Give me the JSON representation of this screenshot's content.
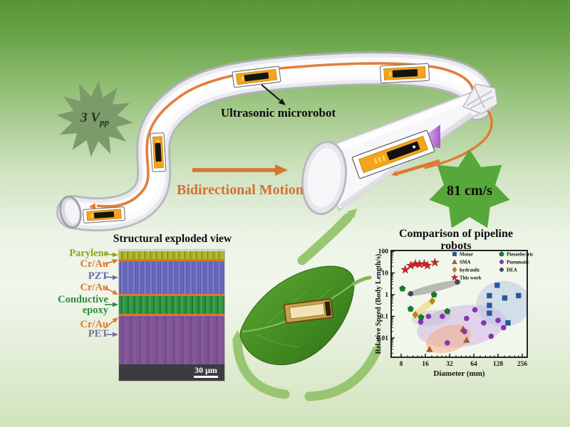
{
  "scene": {
    "vpp_prefix": "3 V",
    "vpp_sub": "pp",
    "microrobot_label": "Ultrasonic microrobot",
    "motion_label": "Bidirectional Motion",
    "speed_badge": "81 cm/s",
    "accent_orange": "#d2722e",
    "badge_green": "#57a83b",
    "vpp_star_green": "#7c9b6a",
    "tube_track_orange": "#e0772e"
  },
  "sem": {
    "title": "Structural exploded view",
    "scale_label": "30 μm",
    "labels": {
      "parylene": "Parylene",
      "crau1": "Cr/Au",
      "pzt": "PZT",
      "crau2": "Cr/Au",
      "epoxy_line1": "Conductive",
      "epoxy_line2": "epoxy",
      "crau3": "Cr/Au",
      "pet": "PET"
    },
    "colors": {
      "parylene": "#96a414",
      "crau": "#e0762f",
      "pzt": "#686ab0",
      "epoxy": "#2d8b3d",
      "pet": "#73739b"
    }
  },
  "chart_data": {
    "type": "scatter",
    "title": "Comparison of pipeline robots",
    "xlabel": "Diameter (mm)",
    "ylabel": "Relative Speed (Body Length/s)",
    "x_scale": "log2",
    "y_scale": "log10",
    "x_ticks": [
      8,
      16,
      32,
      64,
      128,
      256
    ],
    "y_ticks": [
      100,
      10,
      1,
      0.1,
      0.01
    ],
    "xlim": [
      6,
      300
    ],
    "ylim": [
      0.0013,
      100
    ],
    "grid": false,
    "legend_position": "top-right-inside",
    "series": [
      {
        "name": "Motor",
        "marker": "square",
        "color": "#2457a8",
        "points": [
          [
            125,
            2.7
          ],
          [
            100,
            0.9
          ],
          [
            155,
            0.7
          ],
          [
            230,
            0.9
          ],
          [
            100,
            0.32
          ],
          [
            100,
            0.14
          ],
          [
            170,
            0.05
          ]
        ]
      },
      {
        "name": "SMA",
        "marker": "triangle",
        "color": "#b05a2a",
        "points": [
          [
            18,
            0.003
          ],
          [
            47,
            0.026
          ],
          [
            52,
            0.008
          ]
        ]
      },
      {
        "name": "hydraulic",
        "marker": "diamond",
        "color": "#b8860b",
        "points": [
          [
            12,
            0.12
          ],
          [
            19.5,
            0.5
          ]
        ]
      },
      {
        "name": "This work",
        "marker": "star",
        "color": "#d42027",
        "points": [
          [
            9,
            14
          ],
          [
            10.5,
            22
          ],
          [
            12,
            26
          ],
          [
            13.5,
            25
          ],
          [
            15.5,
            26
          ],
          [
            17,
            22
          ],
          [
            21,
            30
          ]
        ]
      },
      {
        "name": "Piezoelectric",
        "marker": "pentagon",
        "color": "#1b7a2a",
        "points": [
          [
            8.3,
            1.9
          ],
          [
            10.5,
            0.22
          ],
          [
            14.2,
            0.09
          ],
          [
            20.5,
            1.0
          ],
          [
            30,
            0.17
          ]
        ]
      },
      {
        "name": "Pneumatic",
        "marker": "circle",
        "color": "#8b2fc0",
        "points": [
          [
            14,
            0.055
          ],
          [
            17.5,
            0.1
          ],
          [
            26,
            0.1
          ],
          [
            52,
            0.08
          ],
          [
            66,
            0.2
          ],
          [
            85,
            0.05
          ],
          [
            128,
            0.065
          ],
          [
            150,
            0.03
          ],
          [
            105,
            0.012
          ],
          [
            30,
            0.006
          ],
          [
            49,
            0.02
          ]
        ]
      },
      {
        "name": "DEA",
        "marker": "circle",
        "color": "#4a4a4a",
        "points": [
          [
            10.5,
            1.1
          ],
          [
            40,
            3.8
          ]
        ]
      }
    ],
    "legend_columns": [
      [
        "Motor",
        "SMA",
        "hydraulic",
        "This work"
      ],
      [
        "Piezoelectric",
        "Pneumatic",
        "DEA"
      ]
    ],
    "regions": [
      {
        "label": "DEA",
        "cx": 20.5,
        "cy": 2.0,
        "rx_oct": 1.15,
        "ry_dec": 0.18,
        "rot": -14,
        "color": "#9a9a9a",
        "opacity": 0.65
      },
      {
        "label": "hydraulic",
        "cx": 15.3,
        "cy": 0.24,
        "rx_oct": 0.62,
        "ry_dec": 0.16,
        "rot": -40,
        "color": "#f3d06a",
        "opacity": 0.6
      },
      {
        "label": "gray-cluster",
        "cx": 19,
        "cy": 0.085,
        "rx_oct": 0.8,
        "ry_dec": 0.35,
        "rot": -8,
        "color": "#bdbdbd",
        "opacity": 0.4
      },
      {
        "label": "Pneumatic",
        "cx": 45,
        "cy": 0.035,
        "rx_oct": 1.85,
        "ry_dec": 0.95,
        "rot": -8,
        "color": "#c7a7e6",
        "opacity": 0.45
      },
      {
        "label": "SMA",
        "cx": 31,
        "cy": 0.009,
        "rx_oct": 0.95,
        "ry_dec": 0.6,
        "rot": -18,
        "color": "#f4a97e",
        "opacity": 0.5
      },
      {
        "label": "Motor",
        "cx": 150,
        "cy": 0.38,
        "rx_oct": 1.12,
        "ry_dec": 1.05,
        "rot": 0,
        "color": "#b3c6e6",
        "opacity": 0.5
      }
    ]
  }
}
